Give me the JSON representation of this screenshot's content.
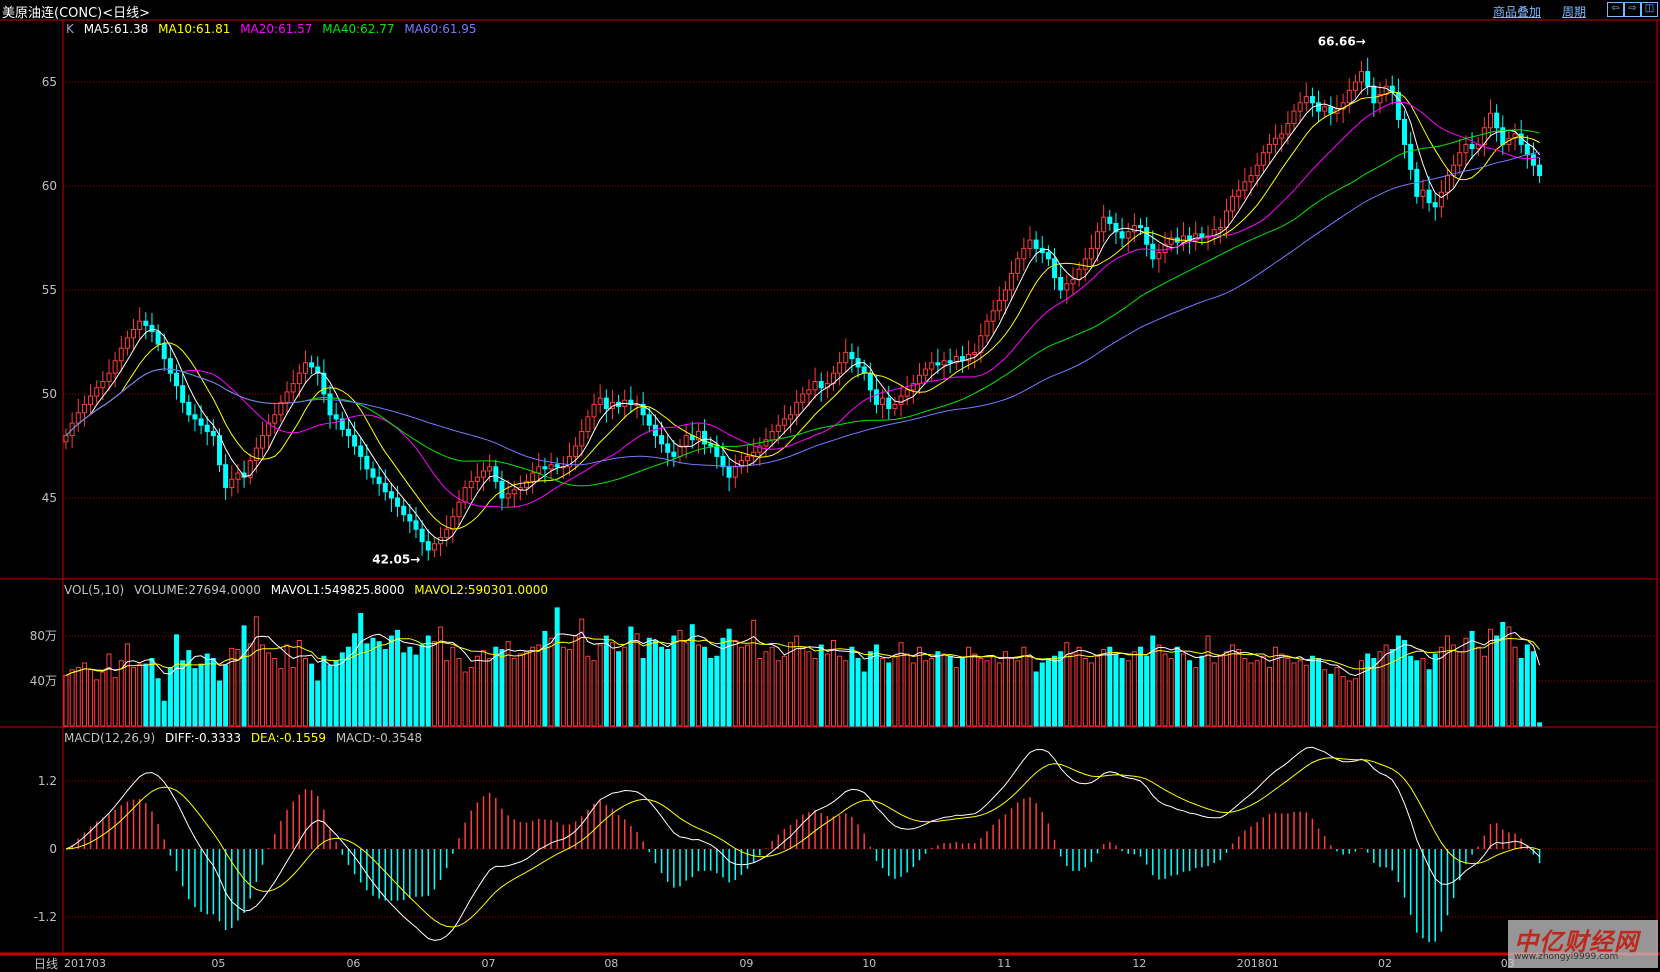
{
  "window": {
    "title": "美原油连(CONC)<日线>"
  },
  "toolbar": {
    "overlay_label": "商品叠加",
    "period_label": "周期",
    "btn_left": "⇦",
    "btn_right": "⇨",
    "btn_split": "◫"
  },
  "main_legend": {
    "k": "K",
    "ma5": "MA5:61.38",
    "ma10": "MA10:61.81",
    "ma20": "MA20:61.57",
    "ma40": "MA40:62.77",
    "ma60": "MA60:61.95"
  },
  "vol_legend": {
    "name": "VOL(5,10)",
    "volume": "VOLUME:27694.0000",
    "mavol1": "MAVOL1:549825.8000",
    "mavol2": "MAVOL2:590301.0000"
  },
  "macd_legend": {
    "name": "MACD(12,26,9)",
    "diff": "DIFF:-0.3333",
    "dea": "DEA:-0.1559",
    "macd": "MACD:-0.3548"
  },
  "period_label": "日线",
  "watermark": {
    "logo": "中亿财经网",
    "url": "www.zhongyi9999.com"
  },
  "colors": {
    "up": "#ff3c3c",
    "down": "#00ffff",
    "ma5": "#ffffff",
    "ma10": "#ffff00",
    "ma20": "#ff00ff",
    "ma40": "#00e600",
    "ma60": "#7878ff",
    "grid": "#a00000",
    "border": "#c80000",
    "axis_text": "#c0c0c0"
  },
  "chart_data": [
    {
      "type": "candlestick",
      "title": "",
      "price_ticks": [
        45,
        50,
        55,
        60,
        65
      ],
      "ylim": [
        41,
        67
      ],
      "x_ticks": [
        "201703",
        "05",
        "06",
        "07",
        "08",
        "09",
        "10",
        "11",
        "12",
        "201801",
        "02",
        "03"
      ],
      "x_tick_index": [
        0,
        24,
        46,
        68,
        88,
        110,
        130,
        152,
        174,
        191,
        214,
        234
      ],
      "annotations": [
        {
          "text": "66.66",
          "index": 213,
          "value": 66.66
        },
        {
          "text": "42.05",
          "index": 59,
          "value": 42.05
        }
      ],
      "moving_averages": [
        5,
        10,
        20,
        40,
        60
      ],
      "close": [
        48.0,
        48.6,
        49.1,
        49.5,
        49.9,
        50.3,
        50.6,
        51.0,
        51.6,
        52.2,
        52.7,
        53.1,
        53.5,
        53.3,
        53.0,
        52.4,
        51.7,
        51.0,
        50.4,
        49.6,
        49.0,
        48.8,
        48.5,
        48.2,
        48.0,
        46.6,
        45.5,
        45.9,
        46.2,
        46.0,
        46.8,
        47.4,
        48.0,
        48.6,
        49.0,
        49.6,
        50.1,
        50.5,
        51.0,
        51.5,
        51.3,
        51.0,
        50.0,
        49.0,
        48.8,
        48.3,
        48.0,
        47.5,
        47.0,
        46.4,
        46.0,
        45.7,
        45.3,
        45.0,
        44.6,
        44.2,
        43.9,
        43.5,
        42.9,
        42.5,
        42.8,
        43.1,
        43.5,
        44.1,
        44.8,
        45.5,
        45.8,
        46.0,
        46.3,
        46.5,
        45.8,
        45.0,
        45.2,
        45.4,
        45.5,
        45.8,
        46.2,
        46.5,
        46.4,
        46.6,
        46.5,
        46.5,
        47.0,
        47.5,
        48.2,
        48.9,
        49.5,
        49.8,
        49.3,
        49.6,
        49.4,
        49.7,
        49.5,
        49.5,
        49.0,
        48.5,
        48.0,
        47.6,
        47.2,
        47.0,
        47.5,
        48.0,
        47.8,
        48.2,
        47.6,
        47.5,
        47.0,
        46.5,
        46.0,
        46.5,
        46.8,
        47.0,
        47.2,
        47.5,
        47.8,
        48.2,
        48.5,
        48.8,
        49.0,
        49.6,
        50.0,
        50.2,
        50.6,
        50.3,
        50.5,
        51.0,
        51.5,
        52.0,
        51.7,
        51.3,
        51.0,
        50.2,
        49.5,
        49.8,
        49.3,
        49.5,
        49.9,
        50.2,
        50.5,
        50.9,
        51.2,
        51.5,
        51.4,
        51.6,
        51.5,
        51.8,
        51.6,
        51.9,
        52.0,
        52.8,
        53.5,
        54.0,
        54.5,
        55.0,
        55.8,
        56.5,
        57.0,
        57.4,
        57.0,
        56.8,
        56.5,
        55.6,
        55.0,
        55.3,
        55.5,
        56.0,
        56.5,
        57.0,
        57.8,
        58.5,
        58.2,
        57.8,
        57.5,
        57.8,
        58.1,
        58.0,
        57.2,
        56.5,
        56.8,
        57.2,
        57.5,
        57.3,
        57.6,
        57.4,
        57.7,
        57.5,
        57.6,
        57.9,
        58.0,
        58.8,
        59.5,
        59.8,
        60.2,
        60.5,
        61.0,
        61.6,
        62.0,
        62.3,
        62.5,
        63.0,
        63.6,
        64.0,
        64.3,
        64.0,
        63.6,
        63.8,
        63.5,
        63.7,
        64.0,
        64.6,
        65.0,
        65.5,
        64.8,
        64.0,
        64.4,
        64.8,
        64.5,
        63.2,
        62.0,
        60.8,
        59.5,
        59.8,
        59.2,
        59.0,
        59.7,
        60.5,
        61.0,
        61.6,
        62.0,
        61.8,
        62.0,
        62.8,
        63.5,
        62.8,
        62.0,
        62.3,
        62.5,
        62.0,
        61.5,
        61.0,
        60.5
      ]
    },
    {
      "type": "bar",
      "title": "",
      "unit": "万",
      "y_ticks": [
        {
          "value": 40,
          "label": "40万"
        },
        {
          "value": 80,
          "label": "80万"
        }
      ],
      "ylim": [
        0,
        125
      ],
      "moving_averages": [
        5,
        10
      ],
      "volume": [
        45,
        50,
        52,
        56,
        50,
        41,
        48,
        64,
        43,
        58,
        73,
        52,
        55,
        55,
        60,
        42,
        22,
        52,
        81,
        58,
        67,
        51,
        55,
        64,
        60,
        40,
        54,
        69,
        68,
        89,
        73,
        97,
        72,
        65,
        60,
        51,
        72,
        52,
        76,
        60,
        55,
        40,
        62,
        54,
        58,
        65,
        70,
        82,
        100,
        73,
        78,
        75,
        68,
        80,
        85,
        65,
        70,
        63,
        72,
        80,
        75,
        88,
        58,
        70,
        60,
        48,
        52,
        62,
        67,
        60,
        70,
        68,
        75,
        60,
        64,
        66,
        70,
        72,
        84,
        78,
        105,
        70,
        68,
        80,
        95,
        62,
        58,
        72,
        80,
        74,
        66,
        70,
        88,
        82,
        60,
        78,
        76,
        70,
        68,
        80,
        85,
        74,
        90,
        72,
        70,
        60,
        62,
        78,
        86,
        76,
        70,
        72,
        94,
        60,
        66,
        70,
        58,
        62,
        74,
        80,
        70,
        66,
        60,
        72,
        64,
        76,
        62,
        58,
        70,
        60,
        48,
        66,
        72,
        60,
        56,
        62,
        74,
        64,
        56,
        70,
        58,
        60,
        66,
        64,
        62,
        52,
        60,
        70,
        64,
        60,
        58,
        62,
        56,
        66,
        60,
        58,
        70,
        62,
        48,
        56,
        60,
        62,
        66,
        74,
        64,
        70,
        60,
        56,
        62,
        68,
        70,
        64,
        60,
        58,
        66,
        70,
        62,
        80,
        72,
        64,
        60,
        70,
        64,
        58,
        52,
        62,
        80,
        56,
        62,
        66,
        72,
        68,
        60,
        56,
        58,
        62,
        52,
        70,
        64,
        60,
        56,
        58,
        54,
        62,
        60,
        50,
        46,
        52,
        44,
        40,
        42,
        58,
        64,
        60,
        66,
        72,
        68,
        80,
        76,
        62,
        58,
        60,
        50,
        64,
        70,
        80,
        72,
        66,
        78,
        84,
        70,
        62,
        86,
        80,
        92,
        88,
        70,
        60,
        72,
        66,
        2.8
      ]
    },
    {
      "type": "macd",
      "title": "",
      "params": [
        12,
        26,
        9
      ],
      "y_ticks": [
        {
          "value": 1.2,
          "label": "1.2"
        },
        {
          "value": 0,
          "label": "0"
        },
        {
          "value": -1.2,
          "label": "-1.2"
        }
      ],
      "ylim": [
        -1.8,
        1.8
      ]
    }
  ]
}
